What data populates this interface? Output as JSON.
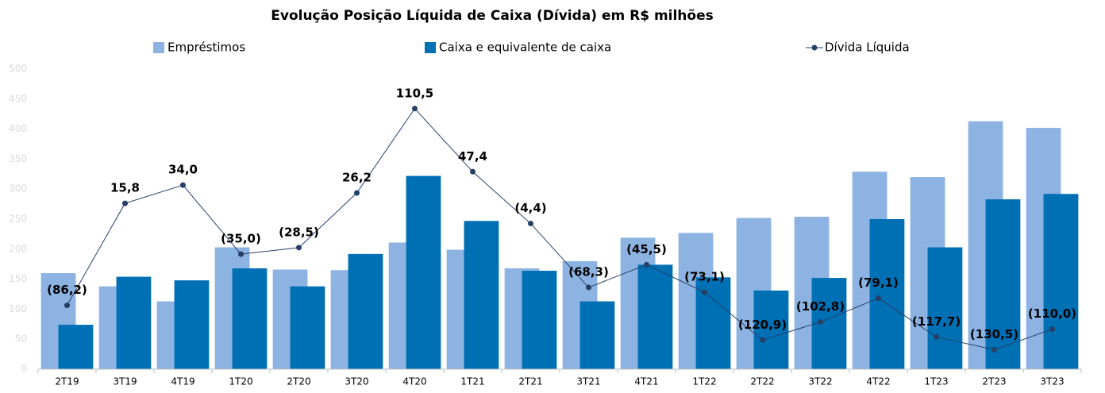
{
  "chart_data": {
    "type": "bar-line",
    "title": "Evolução Posição Líquida de Caixa (Dívida) em R$ milhões",
    "categories": [
      "2T19",
      "3T19",
      "4T19",
      "1T20",
      "2T20",
      "3T20",
      "4T20",
      "1T21",
      "2T21",
      "3T21",
      "4T21",
      "1T22",
      "2T22",
      "3T22",
      "4T22",
      "1T23",
      "2T23",
      "3T23"
    ],
    "series": [
      {
        "name": "Empréstimos",
        "type": "bar",
        "color": "#8db3e2",
        "values": [
          160,
          138,
          113,
          203,
          166,
          165,
          211,
          199,
          168,
          180,
          219,
          227,
          252,
          254,
          329,
          320,
          413,
          402
        ]
      },
      {
        "name": "Caixa e equivalente de caixa",
        "type": "bar",
        "color": "#0070b5",
        "values": [
          74,
          154,
          148,
          168,
          138,
          192,
          322,
          247,
          164,
          113,
          174,
          153,
          131,
          152,
          250,
          203,
          283,
          292
        ]
      },
      {
        "name": "Dívida Líquida",
        "type": "line",
        "axis": "y2",
        "color": "#263f66",
        "values": [
          -86.2,
          15.8,
          34.0,
          -35.0,
          -28.5,
          26.2,
          110.5,
          47.4,
          -4.4,
          -68.3,
          -45.5,
          -73.1,
          -120.9,
          -102.8,
          -79.1,
          -117.7,
          -130.5,
          -110.0
        ],
        "value_labels": [
          "(86,2)",
          "15,8",
          "34,0",
          "(35,0)",
          "(28,5)",
          "26,2",
          "110,5",
          "47,4",
          "(4,4)",
          "(68,3)",
          "(45,5)",
          "(73,1)",
          "(120,9)",
          "(102,8)",
          "(79,1)",
          "(117,7)",
          "(130,5)",
          "(110,0)"
        ]
      }
    ],
    "ylim": [
      0,
      500
    ],
    "yticks": [
      0,
      50,
      100,
      150,
      200,
      250,
      300,
      350,
      400,
      450,
      500
    ],
    "y2lim": [
      -150,
      150
    ],
    "legend": "top",
    "grid": false
  }
}
